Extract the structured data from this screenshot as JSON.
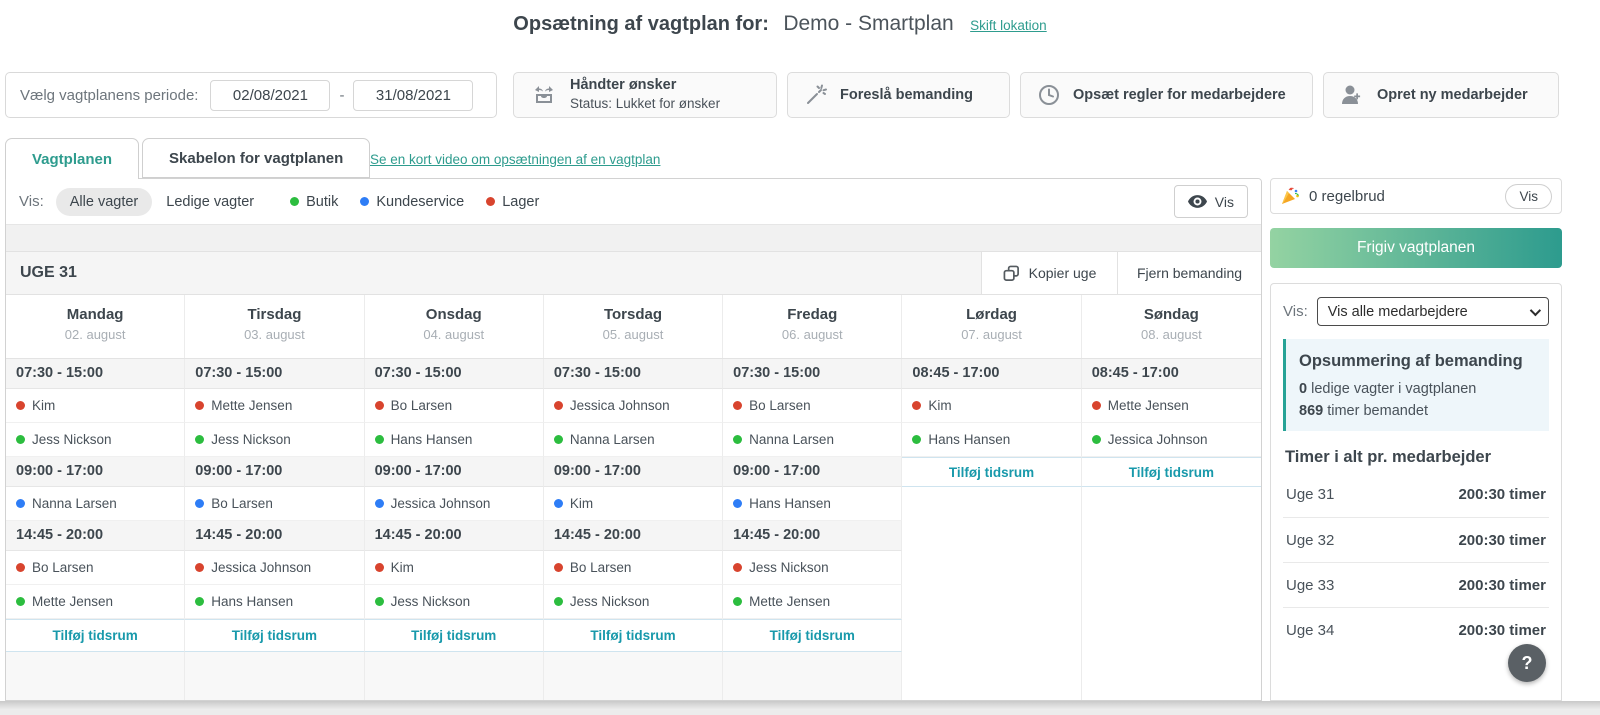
{
  "colors": {
    "red": "#d8442e",
    "green": "#2cbd3f",
    "blue": "#2e7df6",
    "teal": "#2e9c8e",
    "add_teal": "#1899ab"
  },
  "header": {
    "title": "Opsætning af vagtplan for:",
    "location": "Demo - Smartplan",
    "switch_link": "Skift lokation"
  },
  "toolbar": {
    "period_label": "Vælg vagtplanens periode:",
    "date_from": "02/08/2021",
    "date_to": "31/08/2021",
    "separator": "-",
    "buttons": [
      {
        "label": "Håndter ønsker",
        "sublabel": "Status: Lukket for ønsker",
        "icon": "inbox-requests-icon"
      },
      {
        "label": "Foreslå bemanding",
        "icon": "magic-wand-icon"
      },
      {
        "label": "Opsæt regler for medarbejdere",
        "icon": "clock-icon"
      },
      {
        "label": "Opret ny medarbejder",
        "icon": "add-user-icon"
      }
    ]
  },
  "tabs": [
    {
      "label": "Vagtplanen",
      "active": true
    },
    {
      "label": "Skabelon for vagtplanen",
      "active": false
    }
  ],
  "video_link": "Se en kort video om opsætningen af en vagtplan",
  "filters": {
    "label": "Vis:",
    "all_shifts": "Alle vagter",
    "open_shifts": "Ledige vagter",
    "groups": [
      {
        "label": "Butik",
        "color": "green"
      },
      {
        "label": "Kundeservice",
        "color": "blue"
      },
      {
        "label": "Lager",
        "color": "red"
      }
    ],
    "vis_button": "Vis"
  },
  "week": {
    "label": "UGE 31",
    "copy_button": "Kopier uge",
    "remove_button": "Fjern bemanding",
    "add_slot_label": "Tilføj tidsrum"
  },
  "grid": {
    "days": [
      {
        "name": "Mandag",
        "date": "02. august"
      },
      {
        "name": "Tirsdag",
        "date": "03. august"
      },
      {
        "name": "Onsdag",
        "date": "04. august"
      },
      {
        "name": "Torsdag",
        "date": "05. august"
      },
      {
        "name": "Fredag",
        "date": "06. august"
      },
      {
        "name": "Lørdag",
        "date": "07. august"
      },
      {
        "name": "Søndag",
        "date": "08. august"
      }
    ],
    "rows": [
      {
        "type": "time",
        "cells": [
          {
            "t": "time",
            "v": "07:30 - 15:00"
          },
          {
            "t": "time",
            "v": "07:30 - 15:00"
          },
          {
            "t": "time",
            "v": "07:30 - 15:00"
          },
          {
            "t": "time",
            "v": "07:30 - 15:00"
          },
          {
            "t": "time",
            "v": "07:30 - 15:00"
          },
          {
            "t": "time",
            "v": "08:45 - 17:00"
          },
          {
            "t": "time",
            "v": "08:45 - 17:00"
          }
        ]
      },
      {
        "type": "emp",
        "cells": [
          {
            "t": "emp",
            "c": "red",
            "n": "Kim"
          },
          {
            "t": "emp",
            "c": "red",
            "n": "Mette Jensen"
          },
          {
            "t": "emp",
            "c": "red",
            "n": "Bo Larsen"
          },
          {
            "t": "emp",
            "c": "red",
            "n": "Jessica Johnson"
          },
          {
            "t": "emp",
            "c": "red",
            "n": "Bo Larsen"
          },
          {
            "t": "emp",
            "c": "red",
            "n": "Kim"
          },
          {
            "t": "emp",
            "c": "red",
            "n": "Mette Jensen"
          }
        ]
      },
      {
        "type": "emp",
        "cells": [
          {
            "t": "emp",
            "c": "green",
            "n": "Jess Nickson"
          },
          {
            "t": "emp",
            "c": "green",
            "n": "Jess Nickson"
          },
          {
            "t": "emp",
            "c": "green",
            "n": "Hans Hansen"
          },
          {
            "t": "emp",
            "c": "green",
            "n": "Nanna Larsen"
          },
          {
            "t": "emp",
            "c": "green",
            "n": "Nanna Larsen"
          },
          {
            "t": "emp",
            "c": "green",
            "n": "Hans Hansen"
          },
          {
            "t": "emp",
            "c": "green",
            "n": "Jessica Johnson"
          }
        ]
      },
      {
        "type": "time",
        "cells": [
          {
            "t": "time",
            "v": "09:00 - 17:00"
          },
          {
            "t": "time",
            "v": "09:00 - 17:00"
          },
          {
            "t": "time",
            "v": "09:00 - 17:00"
          },
          {
            "t": "time",
            "v": "09:00 - 17:00"
          },
          {
            "t": "time",
            "v": "09:00 - 17:00"
          },
          {
            "t": "add"
          },
          {
            "t": "add"
          }
        ]
      },
      {
        "type": "emp",
        "cells": [
          {
            "t": "emp",
            "c": "blue",
            "n": "Nanna Larsen"
          },
          {
            "t": "emp",
            "c": "blue",
            "n": "Bo Larsen"
          },
          {
            "t": "emp",
            "c": "blue",
            "n": "Jessica Johnson"
          },
          {
            "t": "emp",
            "c": "blue",
            "n": "Kim"
          },
          {
            "t": "emp",
            "c": "blue",
            "n": "Hans Hansen"
          },
          null,
          null
        ]
      },
      {
        "type": "time",
        "cells": [
          {
            "t": "time",
            "v": "14:45 - 20:00"
          },
          {
            "t": "time",
            "v": "14:45 - 20:00"
          },
          {
            "t": "time",
            "v": "14:45 - 20:00"
          },
          {
            "t": "time",
            "v": "14:45 - 20:00"
          },
          {
            "t": "time",
            "v": "14:45 - 20:00"
          },
          null,
          null
        ]
      },
      {
        "type": "emp",
        "cells": [
          {
            "t": "emp",
            "c": "red",
            "n": "Bo Larsen"
          },
          {
            "t": "emp",
            "c": "red",
            "n": "Jessica Johnson"
          },
          {
            "t": "emp",
            "c": "red",
            "n": "Kim"
          },
          {
            "t": "emp",
            "c": "red",
            "n": "Bo Larsen"
          },
          {
            "t": "emp",
            "c": "red",
            "n": "Jess Nickson"
          },
          null,
          null
        ]
      },
      {
        "type": "emp",
        "cells": [
          {
            "t": "emp",
            "c": "green",
            "n": "Mette Jensen"
          },
          {
            "t": "emp",
            "c": "green",
            "n": "Hans Hansen"
          },
          {
            "t": "emp",
            "c": "green",
            "n": "Jess Nickson"
          },
          {
            "t": "emp",
            "c": "green",
            "n": "Jess Nickson"
          },
          {
            "t": "emp",
            "c": "green",
            "n": "Mette Jensen"
          },
          null,
          null
        ]
      },
      {
        "type": "add",
        "cells": [
          {
            "t": "add"
          },
          {
            "t": "add"
          },
          {
            "t": "add"
          },
          {
            "t": "add"
          },
          {
            "t": "add"
          },
          null,
          null
        ]
      },
      {
        "type": "ghost",
        "cells": [
          {
            "t": "ghost"
          },
          {
            "t": "ghost"
          },
          {
            "t": "ghost"
          },
          {
            "t": "ghost"
          },
          {
            "t": "ghost"
          },
          null,
          null
        ]
      }
    ]
  },
  "sidebar": {
    "rules": {
      "icon": "party-popper-icon",
      "text": "0 regelbrud",
      "vis_button": "Vis"
    },
    "publish_button": "Frigiv vagtplanen",
    "employee_filter": {
      "label": "Vis:",
      "value": "Vis alle medarbejdere"
    },
    "summary": {
      "title": "Opsummering af bemanding",
      "line1_value": "0",
      "line1_text": " ledige vagter i vagtplanen",
      "line2_value": "869",
      "line2_text": " timer bemandet"
    },
    "hours": {
      "title": "Timer i alt pr. medarbejder",
      "rows": [
        {
          "week": "Uge 31",
          "hours": "200:30 timer"
        },
        {
          "week": "Uge 32",
          "hours": "200:30 timer"
        },
        {
          "week": "Uge 33",
          "hours": "200:30 timer"
        },
        {
          "week": "Uge 34",
          "hours": "200:30 timer"
        }
      ]
    }
  },
  "help_button": "?"
}
